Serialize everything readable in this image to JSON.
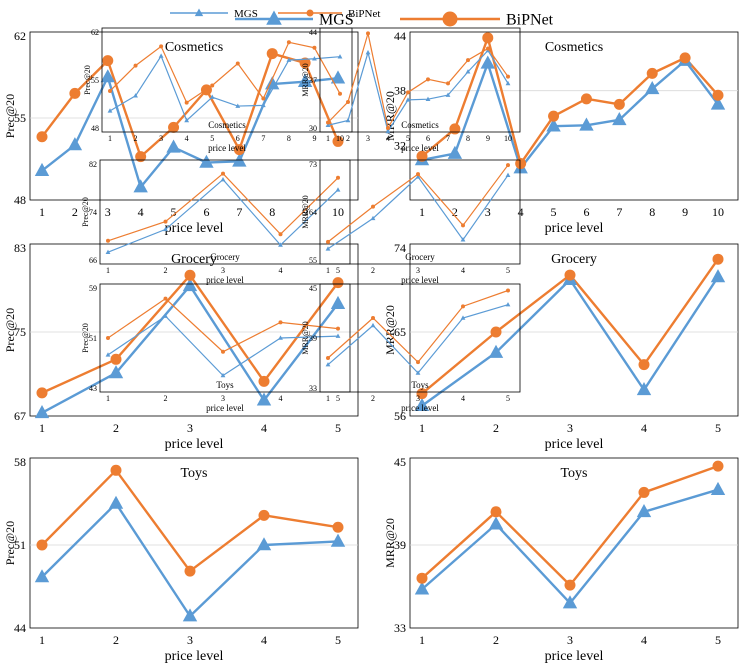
{
  "colors": {
    "mgs": "#5b9bd5",
    "bipnet": "#ed7d31",
    "grid": "#d9d9d9",
    "frame": "#000000"
  },
  "legend": {
    "small": [
      {
        "name": "MGS",
        "key": "mgs"
      },
      {
        "name": "BiPNet",
        "key": "bipnet"
      }
    ],
    "large": [
      {
        "name": "MGS",
        "key": "mgs"
      },
      {
        "name": "BiPNet",
        "key": "bipnet"
      }
    ]
  },
  "chart_data": [
    {
      "id": "cosmetics-prec",
      "type": "line",
      "title": "Cosmetics",
      "xlabel": "price level",
      "ylabel": "Prec@20",
      "categories": [
        "1",
        "2",
        "3",
        "4",
        "5",
        "6",
        "7",
        "8",
        "9",
        "10"
      ],
      "ylim": [
        48,
        62
      ],
      "yticks": [
        48,
        55,
        62
      ],
      "series": [
        {
          "name": "MGS",
          "key": "mgs",
          "values": [
            50.5,
            52.7,
            58.5,
            49.1,
            52.5,
            51.2,
            51.3,
            57.9,
            58.1,
            58.4
          ]
        },
        {
          "name": "BiPNet",
          "key": "bipnet",
          "values": [
            53.4,
            57.1,
            59.9,
            51.7,
            54.2,
            57.4,
            52.3,
            60.5,
            59.7,
            53.0
          ]
        }
      ]
    },
    {
      "id": "cosmetics-mrr",
      "type": "line",
      "title": "Cosmetics",
      "xlabel": "price level",
      "ylabel": "MRR@20",
      "categories": [
        "1",
        "2",
        "3",
        "4",
        "5",
        "6",
        "7",
        "8",
        "9",
        "10"
      ],
      "ylim": [
        26,
        44
      ],
      "yticks": [
        32,
        38,
        44
      ],
      "series": [
        {
          "name": "MGS",
          "key": "mgs",
          "values": [
            30.4,
            31.1,
            41.0,
            29.5,
            34.1,
            34.2,
            34.8,
            38.2,
            41.3,
            36.5
          ]
        },
        {
          "name": "BiPNet",
          "key": "bipnet",
          "values": [
            30.8,
            33.8,
            43.8,
            30.0,
            35.2,
            37.1,
            36.5,
            39.9,
            41.6,
            37.5
          ]
        }
      ]
    },
    {
      "id": "grocery-prec",
      "type": "line",
      "title": "Grocery",
      "xlabel": "price level",
      "ylabel": "Prec@20",
      "categories": [
        "1",
        "2",
        "3",
        "4",
        "5"
      ],
      "ylim": [
        67,
        83
      ],
      "yticks": [
        67,
        75,
        83
      ],
      "series": [
        {
          "name": "MGS",
          "key": "mgs",
          "values": [
            67.3,
            71.1,
            79.4,
            68.5,
            77.7
          ]
        },
        {
          "name": "BiPNet",
          "key": "bipnet",
          "values": [
            69.2,
            72.4,
            80.4,
            70.3,
            79.7
          ]
        }
      ]
    },
    {
      "id": "grocery-mrr",
      "type": "line",
      "title": "Grocery",
      "xlabel": "price level",
      "ylabel": "MRR@20",
      "categories": [
        "1",
        "2",
        "3",
        "4",
        "5"
      ],
      "ylim": [
        56,
        74
      ],
      "yticks": [
        56,
        65,
        74
      ],
      "series": [
        {
          "name": "MGS",
          "key": "mgs",
          "values": [
            57.1,
            62.8,
            70.6,
            58.8,
            70.9
          ]
        },
        {
          "name": "BiPNet",
          "key": "bipnet",
          "values": [
            58.4,
            65.0,
            71.1,
            61.5,
            72.8
          ]
        }
      ]
    },
    {
      "id": "toys-prec",
      "type": "line",
      "title": "Toys",
      "xlabel": "price level",
      "ylabel": "Prec@20",
      "categories": [
        "1",
        "2",
        "3",
        "4",
        "5"
      ],
      "ylim": [
        44,
        58
      ],
      "yticks": [
        44,
        51,
        58
      ],
      "series": [
        {
          "name": "MGS",
          "key": "mgs",
          "values": [
            48.3,
            54.5,
            45.0,
            51.0,
            51.3
          ]
        },
        {
          "name": "BiPNet",
          "key": "bipnet",
          "values": [
            51.0,
            57.3,
            48.8,
            53.5,
            52.5
          ]
        }
      ]
    },
    {
      "id": "toys-mrr",
      "type": "line",
      "title": "Toys",
      "xlabel": "price level",
      "ylabel": "MRR@20",
      "categories": [
        "1",
        "2",
        "3",
        "4",
        "5"
      ],
      "ylim": [
        33,
        45
      ],
      "yticks": [
        33,
        39,
        45
      ],
      "series": [
        {
          "name": "MGS",
          "key": "mgs",
          "values": [
            35.8,
            40.5,
            34.8,
            41.4,
            43.0
          ]
        },
        {
          "name": "BiPNet",
          "key": "bipnet",
          "values": [
            36.6,
            41.4,
            36.1,
            42.8,
            44.7
          ]
        }
      ]
    }
  ],
  "overlay_charts": [
    {
      "id": "inset-cosmetics-prec",
      "title": "Cosmetics",
      "xlabel": "price level",
      "ylabel": "Prec@20",
      "categories": [
        "1",
        "2",
        "3",
        "4",
        "5",
        "6",
        "7",
        "8",
        "9",
        "10"
      ],
      "ylim": [
        48,
        62
      ],
      "yticks": [
        48,
        55,
        62
      ],
      "series": [
        {
          "name": "MGS",
          "key": "mgs",
          "values": [
            50.5,
            52.7,
            58.5,
            49.1,
            52.5,
            51.2,
            51.3,
            57.9,
            58.1,
            58.4
          ]
        },
        {
          "name": "BiPNet",
          "key": "bipnet",
          "values": [
            53.4,
            57.1,
            59.9,
            51.7,
            54.2,
            57.4,
            52.3,
            60.5,
            59.7,
            53.0
          ]
        }
      ]
    },
    {
      "id": "inset-cosmetics-mrr",
      "title": "Cosmetics",
      "xlabel": "price level",
      "ylabel": "MRR@20",
      "categories": [
        "1",
        "2",
        "3",
        "4",
        "5",
        "6",
        "7",
        "8",
        "9",
        "10"
      ],
      "ylim": [
        30,
        44
      ],
      "yticks": [
        30,
        37,
        44
      ],
      "series": [
        {
          "name": "MGS",
          "key": "mgs",
          "values": [
            30.4,
            31.1,
            41.0,
            29.5,
            34.1,
            34.2,
            34.8,
            38.2,
            41.3,
            36.5
          ]
        },
        {
          "name": "BiPNet",
          "key": "bipnet",
          "values": [
            30.8,
            33.8,
            43.8,
            30.0,
            35.2,
            37.1,
            36.5,
            39.9,
            41.6,
            37.5
          ]
        }
      ]
    },
    {
      "id": "inset-grocery-prec",
      "title": "Grocery",
      "xlabel": "price level",
      "ylabel": "Prec@20",
      "categories": [
        "1",
        "2",
        "3",
        "4",
        "5"
      ],
      "ylim": [
        66,
        82
      ],
      "yticks": [
        66,
        74,
        82
      ],
      "series": [
        {
          "name": "MGS",
          "key": "mgs",
          "values": [
            67.3,
            71.1,
            79.4,
            68.5,
            77.7
          ]
        },
        {
          "name": "BiPNet",
          "key": "bipnet",
          "values": [
            69.2,
            72.4,
            80.4,
            70.3,
            79.7
          ]
        }
      ]
    },
    {
      "id": "inset-grocery-mrr",
      "title": "Grocery",
      "xlabel": "price level",
      "ylabel": "MRR@20",
      "categories": [
        "1",
        "2",
        "3",
        "4",
        "5"
      ],
      "ylim": [
        55,
        73
      ],
      "yticks": [
        55,
        64,
        73
      ],
      "series": [
        {
          "name": "MGS",
          "key": "mgs",
          "values": [
            57.1,
            62.8,
            70.6,
            58.8,
            70.9
          ]
        },
        {
          "name": "BiPNet",
          "key": "bipnet",
          "values": [
            58.4,
            65.0,
            71.1,
            61.5,
            72.8
          ]
        }
      ]
    },
    {
      "id": "inset-toys-prec",
      "title": "Toys",
      "xlabel": "price level",
      "ylabel": "Prec@20",
      "categories": [
        "1",
        "2",
        "3",
        "4",
        "5"
      ],
      "ylim": [
        43,
        59
      ],
      "yticks": [
        43,
        51,
        59
      ],
      "series": [
        {
          "name": "MGS",
          "key": "mgs",
          "values": [
            48.3,
            54.5,
            45.0,
            51.0,
            51.3
          ]
        },
        {
          "name": "BiPNet",
          "key": "bipnet",
          "values": [
            51.0,
            57.3,
            48.8,
            53.5,
            52.5
          ]
        }
      ]
    },
    {
      "id": "inset-toys-mrr",
      "title": "Toys",
      "xlabel": "price level",
      "ylabel": "MRR@20",
      "categories": [
        "1",
        "2",
        "3",
        "4",
        "5"
      ],
      "ylim": [
        33,
        45
      ],
      "yticks": [
        33,
        39,
        45
      ],
      "series": [
        {
          "name": "MGS",
          "key": "mgs",
          "values": [
            35.8,
            40.5,
            34.8,
            41.4,
            43.0
          ]
        },
        {
          "name": "BiPNet",
          "key": "bipnet",
          "values": [
            36.6,
            41.4,
            36.1,
            42.8,
            44.7
          ]
        }
      ]
    }
  ]
}
